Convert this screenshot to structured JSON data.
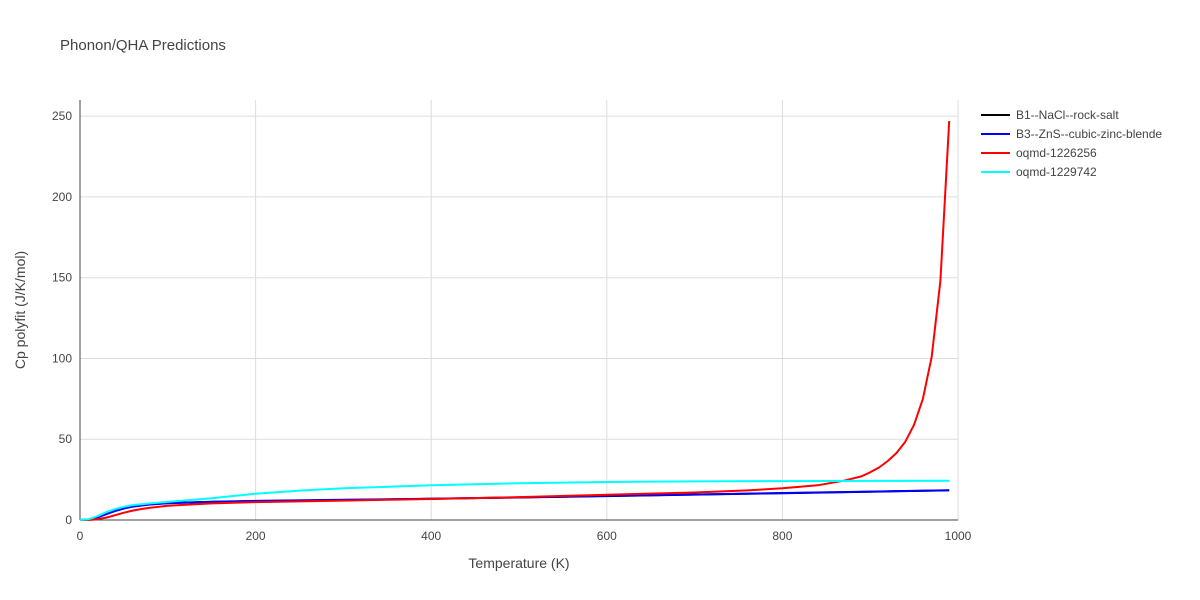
{
  "chart_data": {
    "type": "line",
    "title": "Phonon/QHA Predictions",
    "xlabel": "Temperature (K)",
    "ylabel": "Cp polyfit (J/K/mol)",
    "xlim": [
      0,
      1000
    ],
    "ylim": [
      0,
      260
    ],
    "xticks": [
      0,
      200,
      400,
      600,
      800,
      1000
    ],
    "yticks": [
      0,
      50,
      100,
      150,
      200,
      250
    ],
    "grid": true,
    "legend_position": "top-right",
    "series": [
      {
        "name": "B1--NaCl--rock-salt",
        "color": "#000000",
        "x": [
          0,
          10,
          20,
          30,
          40,
          50,
          60,
          80,
          100,
          150,
          200,
          300,
          400,
          500,
          600,
          700,
          800,
          900,
          990
        ],
        "y": [
          0,
          0.3,
          1.8,
          4.0,
          6.0,
          7.5,
          8.6,
          9.8,
          10.5,
          11.2,
          11.7,
          12.4,
          13.1,
          13.9,
          14.8,
          15.7,
          16.6,
          17.5,
          18.3
        ]
      },
      {
        "name": "B3--ZnS--cubic-zinc-blende",
        "color": "#0000ff",
        "x": [
          0,
          10,
          20,
          30,
          40,
          50,
          60,
          80,
          100,
          150,
          200,
          300,
          400,
          500,
          600,
          700,
          800,
          900,
          990
        ],
        "y": [
          0,
          0.3,
          1.6,
          3.6,
          5.6,
          7.1,
          8.3,
          9.6,
          10.4,
          11.3,
          11.8,
          12.5,
          13.2,
          14.0,
          14.9,
          15.8,
          16.7,
          17.6,
          18.4
        ]
      },
      {
        "name": "oqmd-1226256",
        "color": "#ff0000",
        "x": [
          0,
          10,
          20,
          30,
          40,
          50,
          60,
          70,
          80,
          100,
          150,
          200,
          300,
          400,
          500,
          600,
          700,
          760,
          800,
          840,
          870,
          890,
          900,
          910,
          920,
          930,
          940,
          950,
          960,
          970,
          980,
          990
        ],
        "y": [
          0,
          0,
          0.5,
          1.5,
          3.0,
          4.5,
          5.8,
          6.8,
          7.6,
          8.8,
          10.3,
          11.1,
          12.0,
          13.0,
          14.2,
          15.6,
          17.0,
          18.3,
          19.6,
          21.5,
          24.3,
          27.0,
          29.5,
          32.5,
          36.5,
          41.5,
          48.5,
          59.0,
          75.0,
          101.0,
          148.0,
          247.0
        ]
      },
      {
        "name": "oqmd-1229742",
        "color": "#00ffff",
        "x": [
          0,
          10,
          20,
          30,
          40,
          50,
          60,
          80,
          100,
          150,
          200,
          250,
          300,
          400,
          500,
          600,
          700,
          800,
          900,
          990
        ],
        "y": [
          0,
          0.5,
          2.4,
          4.8,
          6.8,
          8.2,
          9.2,
          10.3,
          11.2,
          13.5,
          16.3,
          18.2,
          19.6,
          21.5,
          22.8,
          23.5,
          23.9,
          24.1,
          24.2,
          24.3
        ]
      }
    ]
  }
}
